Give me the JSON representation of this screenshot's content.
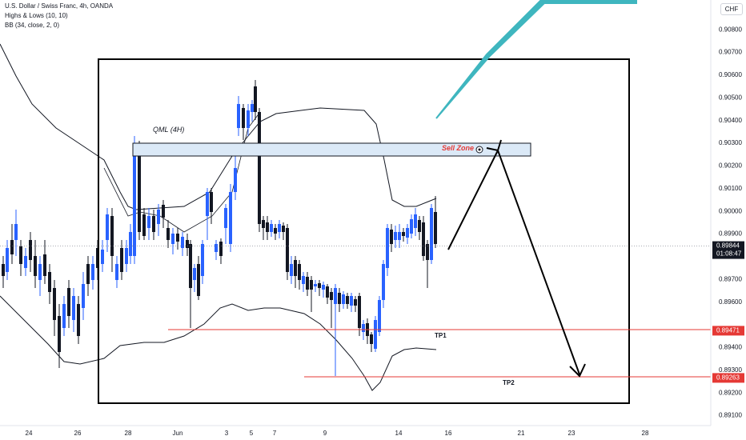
{
  "header": {
    "title": "U.S. Dollar / Swiss Franc, 4h, OANDA",
    "indicator1": "Highs & Lows (10, 10)",
    "indicator2": "BB (34, close, 2, 0)",
    "currency": "CHF"
  },
  "colors": {
    "up": "#2962ff",
    "down": "#131722",
    "band": "#131722",
    "tp_line": "#e53935",
    "teal": "#3fb6bf",
    "zone_fill": "#dbe9f7",
    "sell_text": "#e53935"
  },
  "price_axis": {
    "labels": [
      "0.90800",
      "0.90700",
      "0.90600",
      "0.90500",
      "0.90400",
      "0.90300",
      "0.90200",
      "0.90100",
      "0.90000",
      "0.89900",
      "0.89700",
      "0.89600",
      "0.89400",
      "0.89300",
      "0.89200",
      "0.89100"
    ],
    "current_price": "0.89844",
    "countdown": "01:08:47",
    "tp1_price": "0.89471",
    "tp2_price": "0.89263"
  },
  "time_axis": {
    "labels": [
      "24",
      "26",
      "28",
      "Jun",
      "3",
      "5",
      "7",
      "9",
      "14",
      "16",
      "21",
      "23",
      "28"
    ]
  },
  "annotations": {
    "qml": "QML (4H)",
    "sell_zone": "Sell Zone",
    "tp1": "TP1",
    "tp2": "TP2"
  },
  "chart_data": {
    "type": "candlestick",
    "symbol": "USDCHF",
    "interval": "4h",
    "ylim": [
      0.8906,
      0.909
    ],
    "sell_zone": [
      0.9025,
      0.903
    ],
    "tp1": 0.89471,
    "tp2": 0.89263,
    "current_price": 0.89844
  }
}
